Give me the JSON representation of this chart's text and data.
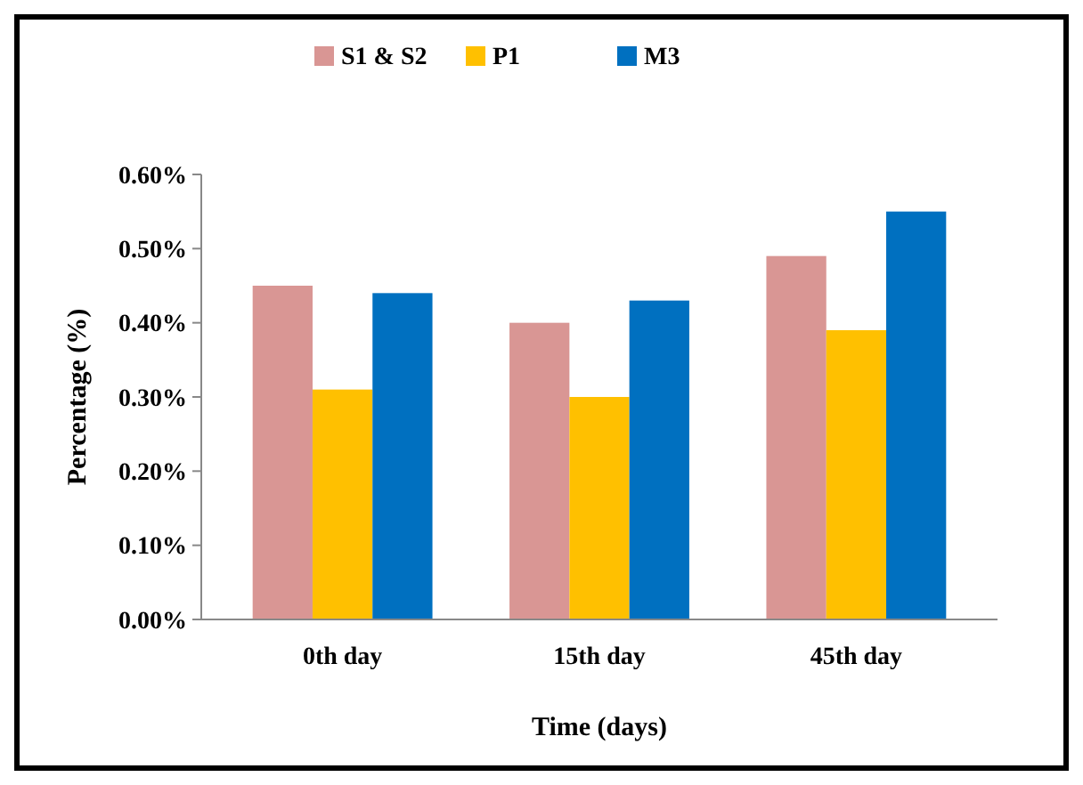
{
  "chart_data": {
    "type": "bar",
    "xlabel": "Time (days)",
    "ylabel": "Percentage (%)",
    "categories": [
      "0th day",
      "15th day",
      "45th day"
    ],
    "series": [
      {
        "name": "S1 & S2",
        "color": "#d99694",
        "values": [
          0.45,
          0.4,
          0.49
        ]
      },
      {
        "name": "P1",
        "color": "#ffc000",
        "values": [
          0.31,
          0.3,
          0.39
        ]
      },
      {
        "name": "M3",
        "color": "#0070c0",
        "values": [
          0.44,
          0.43,
          0.55
        ]
      }
    ],
    "ylim": [
      0,
      0.6
    ],
    "yticks": [
      {
        "value": 0,
        "label": "0.00%"
      },
      {
        "value": 0.1,
        "label": "0.10%"
      },
      {
        "value": 0.2,
        "label": "0.20%"
      },
      {
        "value": 0.3,
        "label": "0.30%"
      },
      {
        "value": 0.4,
        "label": "0.40%"
      },
      {
        "value": 0.5,
        "label": "0.50%"
      },
      {
        "value": 0.6,
        "label": "0.60%"
      }
    ],
    "grid": false,
    "legend": "top"
  }
}
